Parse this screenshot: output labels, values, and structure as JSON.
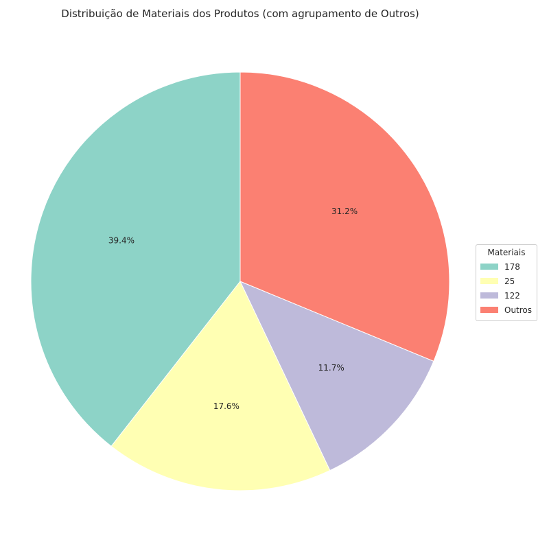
{
  "chart_data": {
    "type": "pie",
    "title": "Distribuição de Materiais dos Produtos (com agrupamento de Outros)",
    "start_angle_deg": 90,
    "direction": "counterclockwise",
    "slices": [
      {
        "label": "178",
        "value": 39.4,
        "pct_label": "39.4%",
        "color": "#8dd3c7"
      },
      {
        "label": "25",
        "value": 17.6,
        "pct_label": "17.6%",
        "color": "#ffffb3"
      },
      {
        "label": "122",
        "value": 11.7,
        "pct_label": "11.7%",
        "color": "#bebada"
      },
      {
        "label": "Outros",
        "value": 31.2,
        "pct_label": "31.2%",
        "color": "#fb8072"
      }
    ],
    "legend": {
      "title": "Materiais",
      "placement": "center-right"
    }
  }
}
